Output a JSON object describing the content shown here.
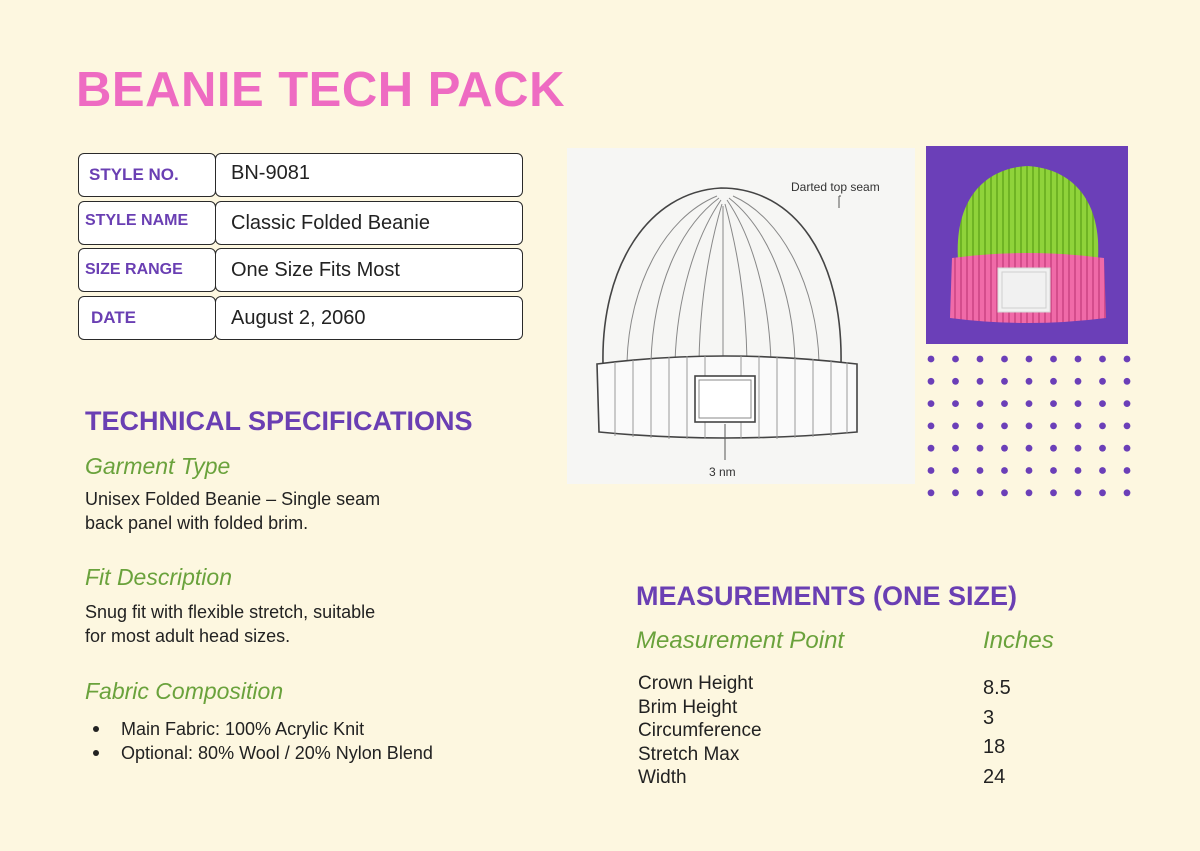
{
  "title": "BEANIE TECH PACK",
  "info": [
    {
      "key": "STYLE NO.",
      "value": "BN-9081"
    },
    {
      "key": "STYLE NAME",
      "value": "Classic Folded Beanie"
    },
    {
      "key": "SIZE RANGE",
      "value": "One Size Fits Most"
    },
    {
      "key": "DATE",
      "value": "August 2, 2060"
    }
  ],
  "technical": {
    "heading": "TECHNICAL SPECIFICATIONS",
    "garment_type": {
      "heading": "Garment Type",
      "lines": [
        "Unisex Folded Beanie – Single seam",
        "back panel with folded brim."
      ]
    },
    "fit": {
      "heading": "Fit Description",
      "lines": [
        "Snug fit with flexible stretch, suitable",
        "for most adult head sizes."
      ]
    },
    "fabric": {
      "heading": "Fabric Composition",
      "items": [
        "Main Fabric: 100% Acrylic Knit",
        "Optional: 80% Wool / 20% Nylon Blend"
      ]
    }
  },
  "sketch": {
    "top_label": "Darted top seam",
    "bottom_label": "3 nm"
  },
  "measurements": {
    "heading": "MEASUREMENTS (ONE SIZE)",
    "col_point": "Measurement Point",
    "col_inches": "Inches",
    "rows": [
      {
        "point": "Crown Height",
        "inches": "8.5"
      },
      {
        "point": "Brim Height",
        "inches": "3"
      },
      {
        "point": "Circumference",
        "inches": "18"
      },
      {
        "point": "Stretch Max",
        "inches": "24"
      },
      {
        "point": "Width",
        "inches": ""
      }
    ]
  },
  "colors": {
    "background": "#fdf7e0",
    "title_pink": "#ee6bc2",
    "heading_purple": "#6a3fb3",
    "subheading_green": "#6aa23c",
    "photo_bg": "#6b3fb8",
    "beanie_green": "#8fd33a",
    "beanie_pink": "#f06aa8"
  }
}
